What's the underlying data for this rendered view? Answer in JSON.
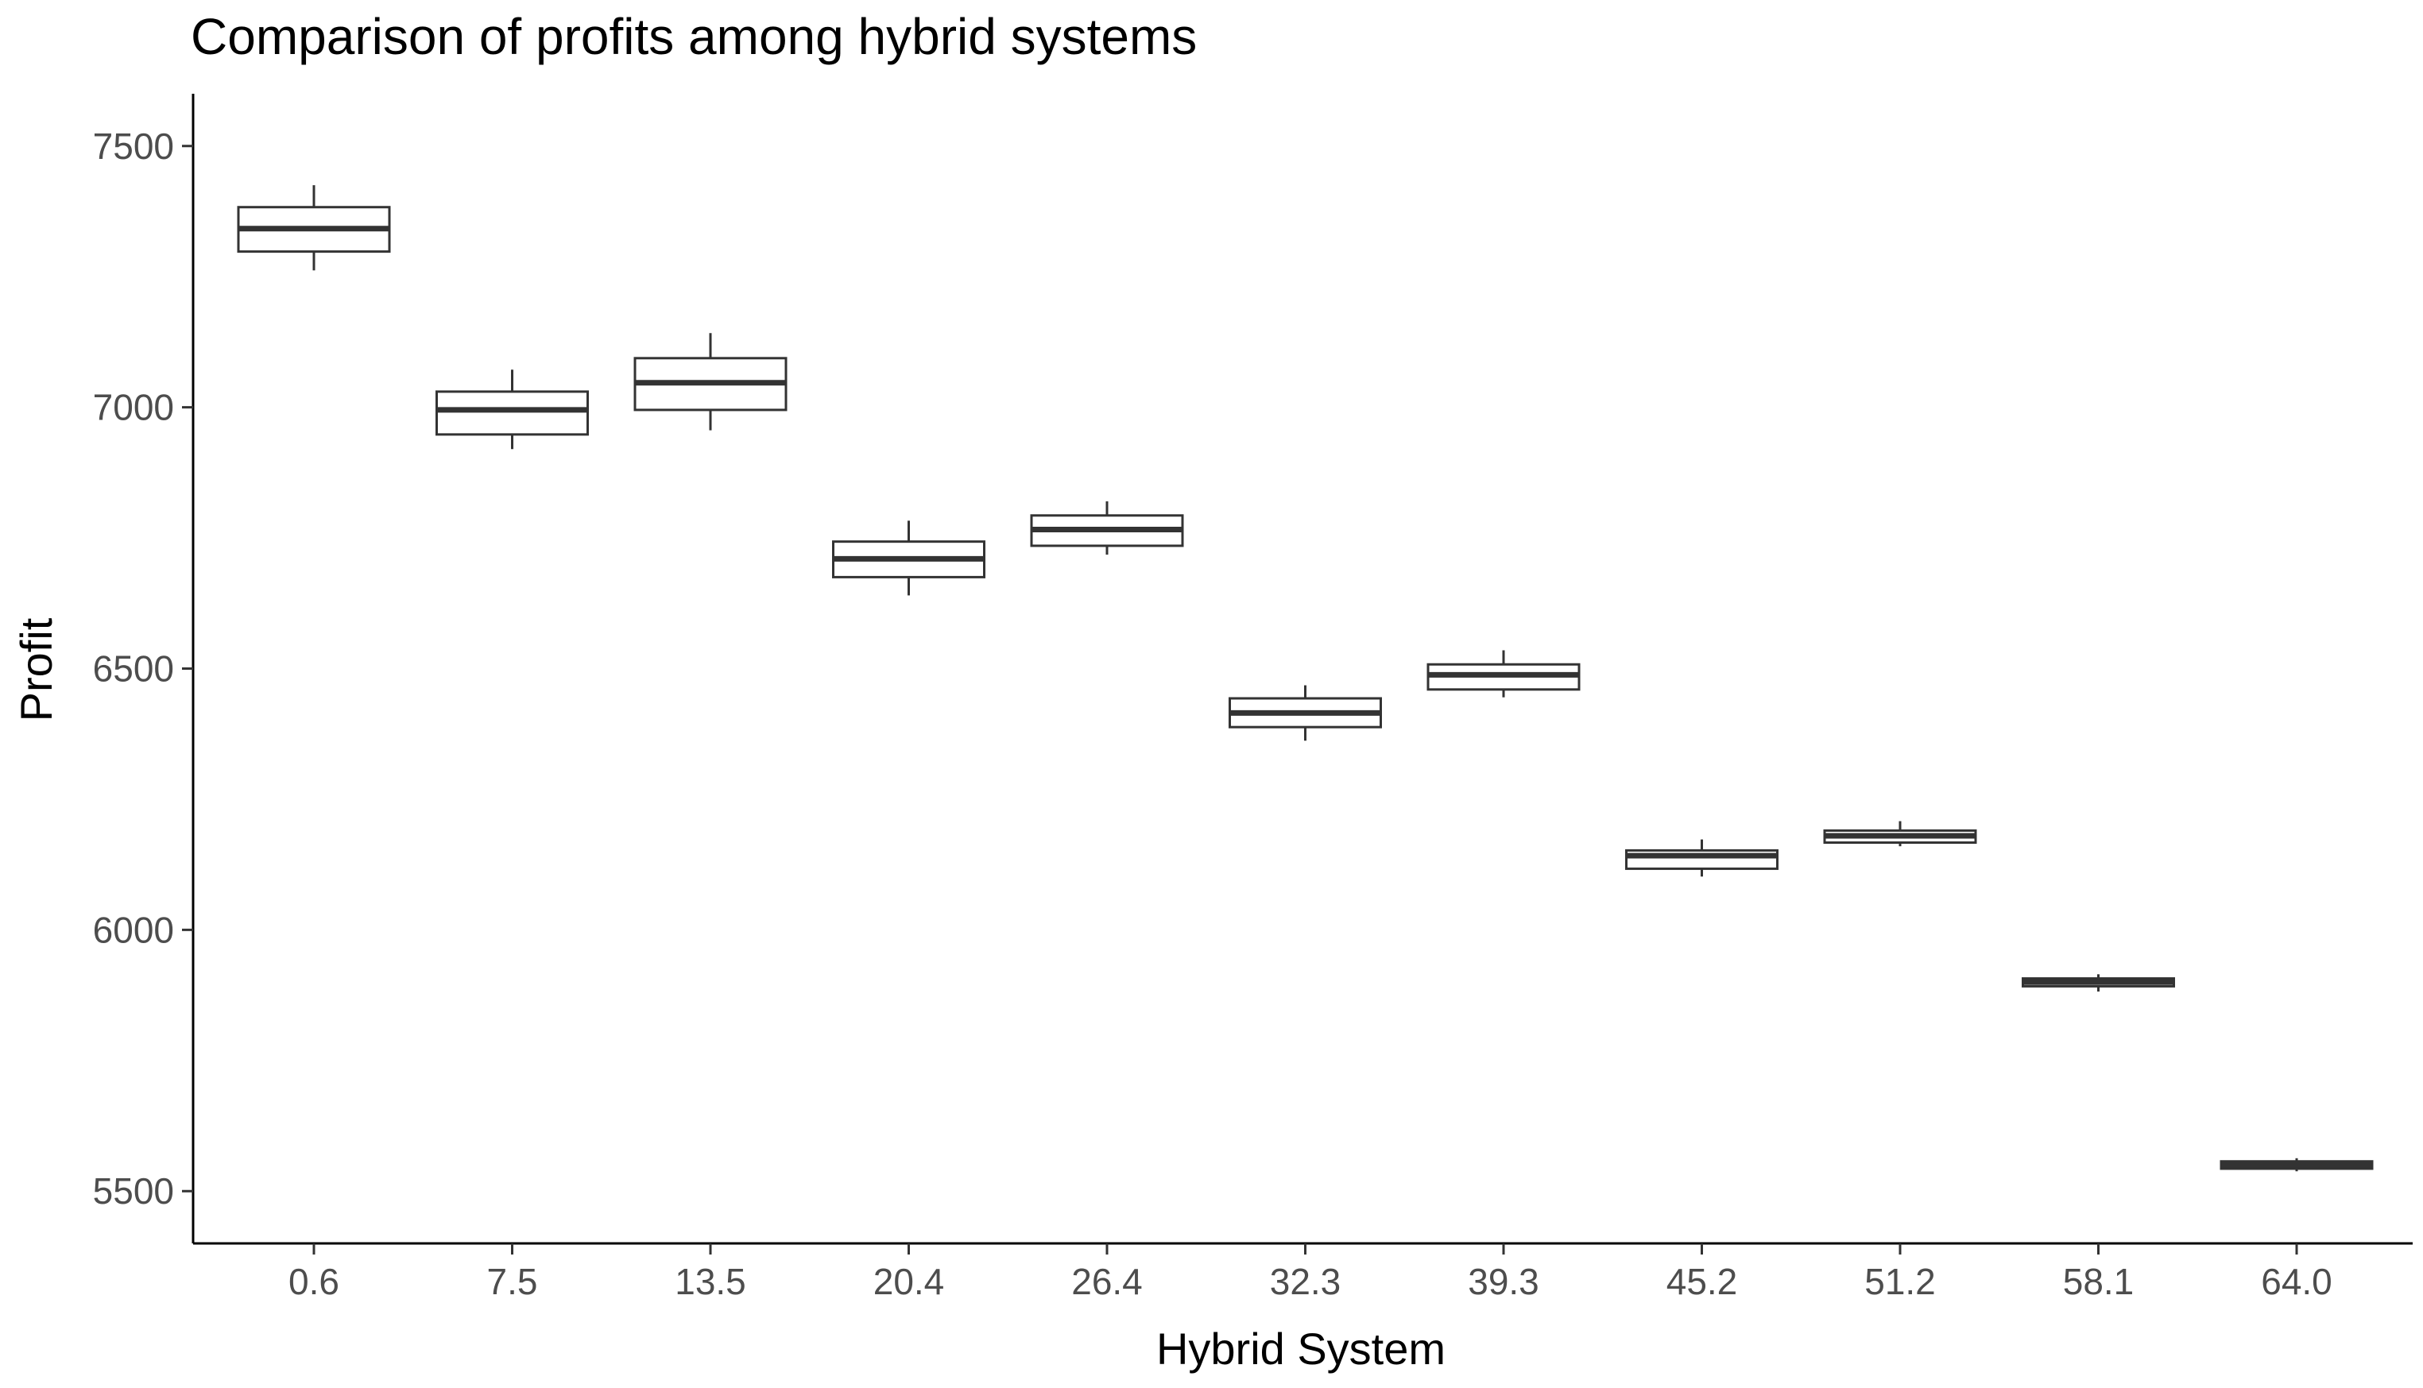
{
  "chart_data": {
    "type": "boxplot",
    "title": "Comparison of profits among hybrid systems",
    "xlabel": "Hybrid System",
    "ylabel": "Profit",
    "ylim": [
      5400,
      7600
    ],
    "yticks": [
      5500,
      6000,
      6500,
      7000,
      7500
    ],
    "grid": false,
    "legend": "none",
    "categories": [
      "0.6",
      "7.5",
      "13.5",
      "20.4",
      "26.4",
      "32.3",
      "39.3",
      "45.2",
      "51.2",
      "58.1",
      "64.0"
    ],
    "boxes": [
      {
        "category": "0.6",
        "min": 7262,
        "q1": 7298,
        "median": 7342,
        "q3": 7383,
        "max": 7425
      },
      {
        "category": "7.5",
        "min": 6920,
        "q1": 6948,
        "median": 6995,
        "q3": 7030,
        "max": 7072
      },
      {
        "category": "13.5",
        "min": 6956,
        "q1": 6995,
        "median": 7047,
        "q3": 7094,
        "max": 7142
      },
      {
        "category": "20.4",
        "min": 6640,
        "q1": 6675,
        "median": 6710,
        "q3": 6743,
        "max": 6783
      },
      {
        "category": "26.4",
        "min": 6718,
        "q1": 6735,
        "median": 6766,
        "q3": 6793,
        "max": 6820
      },
      {
        "category": "32.3",
        "min": 6362,
        "q1": 6388,
        "median": 6415,
        "q3": 6443,
        "max": 6468
      },
      {
        "category": "39.3",
        "min": 6445,
        "q1": 6460,
        "median": 6488,
        "q3": 6508,
        "max": 6535
      },
      {
        "category": "45.2",
        "min": 6102,
        "q1": 6117,
        "median": 6142,
        "q3": 6152,
        "max": 6173
      },
      {
        "category": "51.2",
        "min": 6160,
        "q1": 6167,
        "median": 6180,
        "q3": 6190,
        "max": 6208
      },
      {
        "category": "58.1",
        "min": 5882,
        "q1": 5892,
        "median": 5900,
        "q3": 5907,
        "max": 5915
      },
      {
        "category": "64.0",
        "min": 5538,
        "q1": 5543,
        "median": 5550,
        "q3": 5557,
        "max": 5563
      }
    ],
    "colors": {
      "box_fill": "#ffffff",
      "box_stroke": "#333333",
      "axis": "#000000",
      "tick_label": "#4d4d4d",
      "title": "#000000"
    }
  }
}
